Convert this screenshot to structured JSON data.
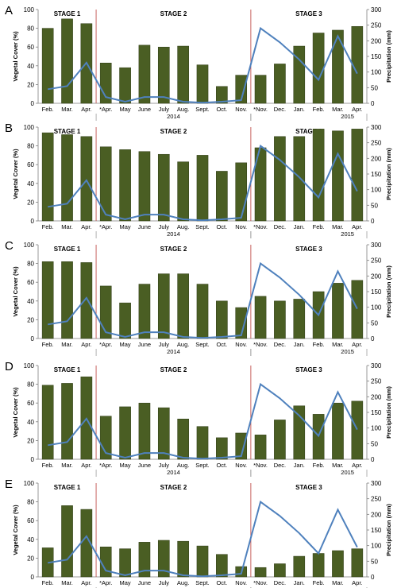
{
  "colors": {
    "bar": "#4a5e23",
    "bar_stroke": "#2e3b14",
    "line": "#4f81bd",
    "stage_divider": "#c0504d",
    "axis": "#7f7f7f",
    "text": "#000000"
  },
  "chart_data": [
    {
      "type": "bar",
      "panel_label": "A",
      "categories": [
        "Feb.",
        "Mar.",
        "Apr.",
        "*Apr.",
        "May",
        "June",
        "July",
        "Aug.",
        "Sept.",
        "Oct.",
        "Nov.",
        "*Nov.",
        "Dec.",
        "Jan.",
        "Feb.",
        "Mar.",
        "Apr."
      ],
      "year_labels": [
        "2014",
        "2015"
      ],
      "stages": [
        "STAGE 1",
        "STAGE 2",
        "STAGE 3"
      ],
      "ylabel": "Vegetal Cover (%)",
      "y2label": "Precipitation (mm)",
      "ylim": [
        0,
        100
      ],
      "y2lim": [
        0,
        300
      ],
      "yticks": [
        0,
        20,
        40,
        60,
        80,
        100
      ],
      "y2ticks": [
        0,
        50,
        100,
        150,
        200,
        250,
        300
      ],
      "series": [
        {
          "values": [
            80,
            90,
            85,
            43,
            38,
            62,
            60,
            61,
            41,
            18,
            30,
            30,
            42,
            61,
            75,
            78,
            82
          ]
        },
        {
          "axis": "right",
          "values": [
            45,
            55,
            130,
            20,
            5,
            20,
            20,
            5,
            2,
            5,
            10,
            240,
            195,
            140,
            75,
            215,
            95
          ]
        }
      ]
    },
    {
      "type": "bar",
      "panel_label": "B",
      "categories": [
        "Feb.",
        "Mar.",
        "Apr.",
        "*Apr.",
        "May",
        "June",
        "July",
        "Aug.",
        "Sept.",
        "Oct.",
        "Nov.",
        "*Nov.",
        "Dec.",
        "Jan.",
        "Feb.",
        "Mar.",
        "Apr."
      ],
      "year_labels": [
        "2014",
        "2015"
      ],
      "stages": [
        "STAGE 1",
        "STAGE 2",
        "STAGE 3"
      ],
      "ylabel": "Vegetal Cover (%)",
      "y2label": "Precipitation (mm)",
      "ylim": [
        0,
        100
      ],
      "y2lim": [
        0,
        300
      ],
      "yticks": [
        0,
        20,
        40,
        60,
        80,
        100
      ],
      "y2ticks": [
        0,
        50,
        100,
        150,
        200,
        250,
        300
      ],
      "series": [
        {
          "values": [
            94,
            92,
            90,
            79,
            76,
            74,
            71,
            63,
            70,
            53,
            62,
            78,
            90,
            90,
            98,
            96,
            98
          ]
        },
        {
          "axis": "right",
          "values": [
            45,
            55,
            130,
            20,
            5,
            20,
            20,
            5,
            2,
            5,
            10,
            240,
            195,
            140,
            75,
            215,
            95
          ]
        }
      ]
    },
    {
      "type": "bar",
      "panel_label": "C",
      "categories": [
        "Feb.",
        "Mar.",
        "Apr.",
        "*Apr.",
        "May",
        "June",
        "July",
        "Aug.",
        "Sept.",
        "Oct.",
        "Nov.",
        "*Nov.",
        "Dec.",
        "Jan.",
        "Feb.",
        "Mar.",
        "Apr."
      ],
      "year_labels": [
        "2014",
        "2015"
      ],
      "stages": [
        "STAGE 1",
        "STAGE 2",
        "STAGE 3"
      ],
      "ylabel": "Vegetal Cover (%)",
      "y2label": "Precipitation (mm)",
      "ylim": [
        0,
        100
      ],
      "y2lim": [
        0,
        300
      ],
      "yticks": [
        0,
        20,
        40,
        60,
        80,
        100
      ],
      "y2ticks": [
        0,
        50,
        100,
        150,
        200,
        250,
        300
      ],
      "series": [
        {
          "values": [
            82,
            82,
            81,
            56,
            38,
            58,
            69,
            69,
            58,
            40,
            33,
            45,
            40,
            42,
            50,
            59,
            62
          ]
        },
        {
          "axis": "right",
          "values": [
            45,
            55,
            130,
            20,
            5,
            20,
            20,
            5,
            2,
            5,
            10,
            240,
            195,
            140,
            75,
            215,
            95
          ]
        }
      ]
    },
    {
      "type": "bar",
      "panel_label": "D",
      "categories": [
        "Feb.",
        "Mar.",
        "Apr.",
        "*Apr.",
        "May",
        "June",
        "July",
        "Aug.",
        "Sept.",
        "Oct.",
        "Nov.",
        "*Nov.",
        "Dec.",
        "Jan.",
        "Feb.",
        "Mar.",
        "Apr."
      ],
      "year_labels": [
        "2014",
        "2015"
      ],
      "stages": [
        "STAGE 1",
        "STAGE 2",
        "STAGE 3"
      ],
      "ylabel": "Vegetal Cover (%)",
      "y2label": "Precipitation (mm)",
      "ylim": [
        0,
        100
      ],
      "y2lim": [
        0,
        300
      ],
      "yticks": [
        0,
        20,
        40,
        60,
        80,
        100
      ],
      "y2ticks": [
        0,
        50,
        100,
        150,
        200,
        250,
        300
      ],
      "series": [
        {
          "values": [
            79,
            81,
            88,
            46,
            56,
            60,
            55,
            43,
            35,
            23,
            28,
            26,
            42,
            57,
            48,
            60,
            62
          ]
        },
        {
          "axis": "right",
          "values": [
            45,
            55,
            130,
            20,
            5,
            20,
            20,
            5,
            2,
            5,
            10,
            240,
            195,
            140,
            75,
            215,
            95
          ]
        }
      ]
    },
    {
      "type": "bar",
      "panel_label": "E",
      "categories": [
        "Feb.",
        "Mar.",
        "Apr.",
        "*Apr.",
        "May",
        "June",
        "July",
        "Aug.",
        "Sept.",
        "Oct.",
        "Nov.",
        "*Nov.",
        "Dec.",
        "Jan.",
        "Feb.",
        "Mar.",
        "Apr."
      ],
      "year_labels": [
        "2014",
        "2015"
      ],
      "stages": [
        "STAGE 1",
        "STAGE 2",
        "STAGE 3"
      ],
      "ylabel": "Vegetal Cover (%)",
      "y2label": "Precipitation (mm)",
      "ylim": [
        0,
        100
      ],
      "y2lim": [
        0,
        300
      ],
      "yticks": [
        0,
        20,
        40,
        60,
        80,
        100
      ],
      "y2ticks": [
        0,
        50,
        100,
        150,
        200,
        250,
        300
      ],
      "series": [
        {
          "values": [
            31,
            76,
            72,
            32,
            30,
            37,
            39,
            38,
            33,
            24,
            11,
            10,
            14,
            22,
            25,
            28,
            30
          ]
        },
        {
          "axis": "right",
          "values": [
            45,
            55,
            130,
            20,
            5,
            20,
            20,
            5,
            2,
            5,
            10,
            240,
            195,
            140,
            75,
            215,
            95
          ]
        }
      ]
    }
  ]
}
